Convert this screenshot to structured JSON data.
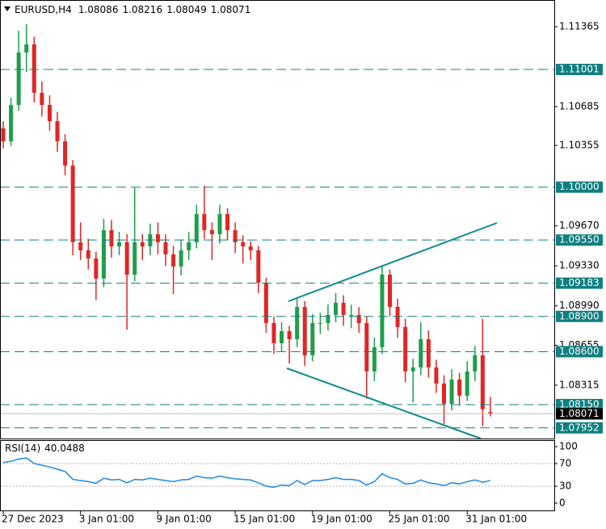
{
  "chart_data": [
    {
      "type": "candlestick",
      "title": "EURUSD,H4",
      "categories": [
        "27 Dec 2023",
        null,
        null,
        null,
        null,
        null,
        null,
        null,
        null,
        null,
        "3 Jan 01:00",
        null,
        null,
        null,
        null,
        null,
        null,
        null,
        null,
        null,
        "9 Jan 01:00",
        null,
        null,
        null,
        null,
        null,
        null,
        null,
        null,
        null,
        "15 Jan 01:00",
        null,
        null,
        null,
        null,
        null,
        null,
        null,
        null,
        null,
        "19 Jan 01:00",
        null,
        null,
        null,
        null,
        null,
        null,
        null,
        null,
        null,
        "25 Jan 01:00",
        null,
        null,
        null,
        null,
        null,
        null,
        null,
        null,
        null,
        "31 Jan 01:00",
        null,
        null,
        null
      ],
      "open": [
        1.105,
        1.1039,
        1.10699,
        1.11145,
        1.11214,
        1.10802,
        1.10699,
        1.10561,
        1.1039,
        1.10183,
        1.09531,
        1.09462,
        1.09393,
        1.09222,
        1.09634,
        1.09496,
        1.09531,
        1.09256,
        1.09531,
        1.09496,
        1.09599,
        1.09531,
        1.09428,
        1.09325,
        1.09462,
        1.09531,
        1.09771,
        1.09634,
        1.09599,
        1.09771,
        1.09634,
        1.09531,
        1.09496,
        1.09462,
        1.09187,
        1.08844,
        1.08672,
        1.08775,
        1.08706,
        1.08981,
        1.08569,
        1.08844,
        1.08844,
        1.08913,
        1.09016,
        1.08913,
        1.08913,
        1.08844,
        1.08432,
        1.08638,
        1.09256,
        1.08981,
        1.0881,
        1.08432,
        1.08466,
        1.08706,
        1.08466,
        1.08329,
        1.08157,
        1.08363,
        1.08226,
        1.08432,
        1.08569,
        1.08086
      ],
      "high": [
        1.1056,
        1.1076,
        1.1133,
        1.11386,
        1.1128,
        1.109,
        1.1078,
        1.1064,
        1.1045,
        1.1023,
        1.097,
        1.0956,
        1.0945,
        1.0973,
        1.0972,
        1.0962,
        1.096,
        1.09995,
        1.096,
        1.0969,
        1.097,
        1.096,
        1.095,
        1.0955,
        1.0962,
        1.0985,
        1.10012,
        1.097,
        1.0985,
        1.0982,
        1.097,
        1.0959,
        1.0954,
        1.095,
        1.0923,
        1.089,
        1.0885,
        1.0882,
        1.0906,
        1.0903,
        1.0892,
        1.0893,
        1.09,
        1.091,
        1.0908,
        1.09,
        1.0898,
        1.089,
        1.0872,
        1.0933,
        1.093,
        1.0905,
        1.0888,
        1.0854,
        1.0885,
        1.0878,
        1.0853,
        1.084,
        1.0845,
        1.0842,
        1.0852,
        1.0865,
        1.0888,
        1.08216
      ],
      "low": [
        1.1033,
        1.1035,
        1.1065,
        1.1098,
        1.1072,
        1.106,
        1.1048,
        1.103,
        1.101,
        1.0942,
        1.0938,
        1.093,
        1.0904,
        1.0915,
        1.094,
        1.0942,
        1.08789,
        1.092,
        1.0938,
        1.0942,
        1.0943,
        1.0933,
        1.0909,
        1.0925,
        1.0938,
        1.0948,
        1.0956,
        1.0938,
        1.0952,
        1.0955,
        1.0944,
        1.0935,
        1.0938,
        1.091,
        1.0876,
        1.0858,
        1.086,
        1.085,
        1.0864,
        1.0848,
        1.0852,
        1.0875,
        1.0878,
        1.0885,
        1.0882,
        1.088,
        1.0876,
        1.082,
        1.0835,
        1.0858,
        1.089,
        1.0872,
        1.0834,
        1.0817,
        1.084,
        1.0838,
        1.0825,
        1.07985,
        1.081,
        1.0814,
        1.0818,
        1.0835,
        1.07964,
        1.08049
      ],
      "close": [
        1.1039,
        1.10699,
        1.11145,
        1.11214,
        1.10802,
        1.10699,
        1.10561,
        1.1039,
        1.10183,
        1.09531,
        1.09462,
        1.09393,
        1.09222,
        1.09634,
        1.09496,
        1.09531,
        1.09256,
        1.09531,
        1.09496,
        1.09599,
        1.09531,
        1.09428,
        1.09325,
        1.09462,
        1.09531,
        1.09771,
        1.09634,
        1.09599,
        1.09771,
        1.09634,
        1.09531,
        1.09496,
        1.09462,
        1.09187,
        1.08844,
        1.08672,
        1.08775,
        1.08706,
        1.08981,
        1.08569,
        1.08844,
        1.08844,
        1.08913,
        1.09016,
        1.08913,
        1.08913,
        1.08844,
        1.08432,
        1.08638,
        1.09256,
        1.08981,
        1.0881,
        1.08432,
        1.08466,
        1.08706,
        1.08466,
        1.08329,
        1.08157,
        1.08363,
        1.08226,
        1.08432,
        1.08569,
        1.0811,
        1.08071
      ],
      "up_color": "#1f9e4a",
      "down_color": "#e02626",
      "ylim": [
        1.07861,
        1.11592
      ],
      "yticks": [
        1.11365,
        1.10685,
        1.10355,
        {
          "value": 1.0967,
          "label": "1.09670"
        },
        {
          "value": 1.0933,
          "label": "1.09330"
        },
        {
          "value": 1.0899,
          "label": "1.08990"
        },
        1.08655,
        1.08315
      ],
      "levels": [
        1.11001,
        {
          "value": 1.1,
          "label": "1.10000"
        },
        {
          "value": 1.0955,
          "label": "1.09550"
        },
        1.09183,
        {
          "value": 1.089,
          "label": "1.08900"
        },
        {
          "value": 1.086,
          "label": "1.08600"
        },
        {
          "value": 1.0815,
          "label": "1.08150"
        },
        1.07952
      ],
      "level_color": "#0f7f80"
    },
    {
      "type": "line",
      "title": "RSI(14)",
      "values": [
        72,
        74,
        78,
        80,
        70,
        67,
        64,
        60,
        56,
        42,
        40,
        38,
        35,
        44,
        41,
        42,
        36,
        42,
        41,
        44,
        42,
        40,
        38,
        41,
        42,
        48,
        45,
        44,
        48,
        45,
        43,
        42,
        41,
        36,
        30,
        28,
        32,
        31,
        40,
        33,
        40,
        40,
        42,
        45,
        42,
        42,
        40,
        32,
        38,
        52,
        45,
        42,
        34,
        35,
        41,
        36,
        34,
        31,
        36,
        34,
        38,
        41,
        37,
        40.0488
      ],
      "color": "#1e88e5",
      "ylim": [
        -12.9,
        111.4
      ],
      "yticks": [
        0,
        30,
        70,
        100
      ],
      "levels": [
        30,
        70
      ]
    }
  ]
}
